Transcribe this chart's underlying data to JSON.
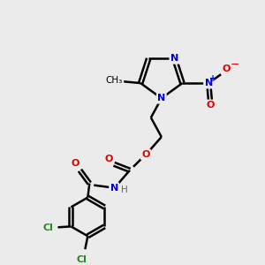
{
  "bg_color": "#ebebeb",
  "bond_color": "#000000",
  "bond_lw": 1.8,
  "atom_colors": {
    "N": "#0000dd",
    "O": "#dd0000",
    "Cl": "#228B22",
    "C": "#000000",
    "H": "#666666",
    "plus": "#0000dd",
    "minus": "#dd0000"
  },
  "figsize": [
    3.0,
    3.0
  ],
  "dpi": 100
}
